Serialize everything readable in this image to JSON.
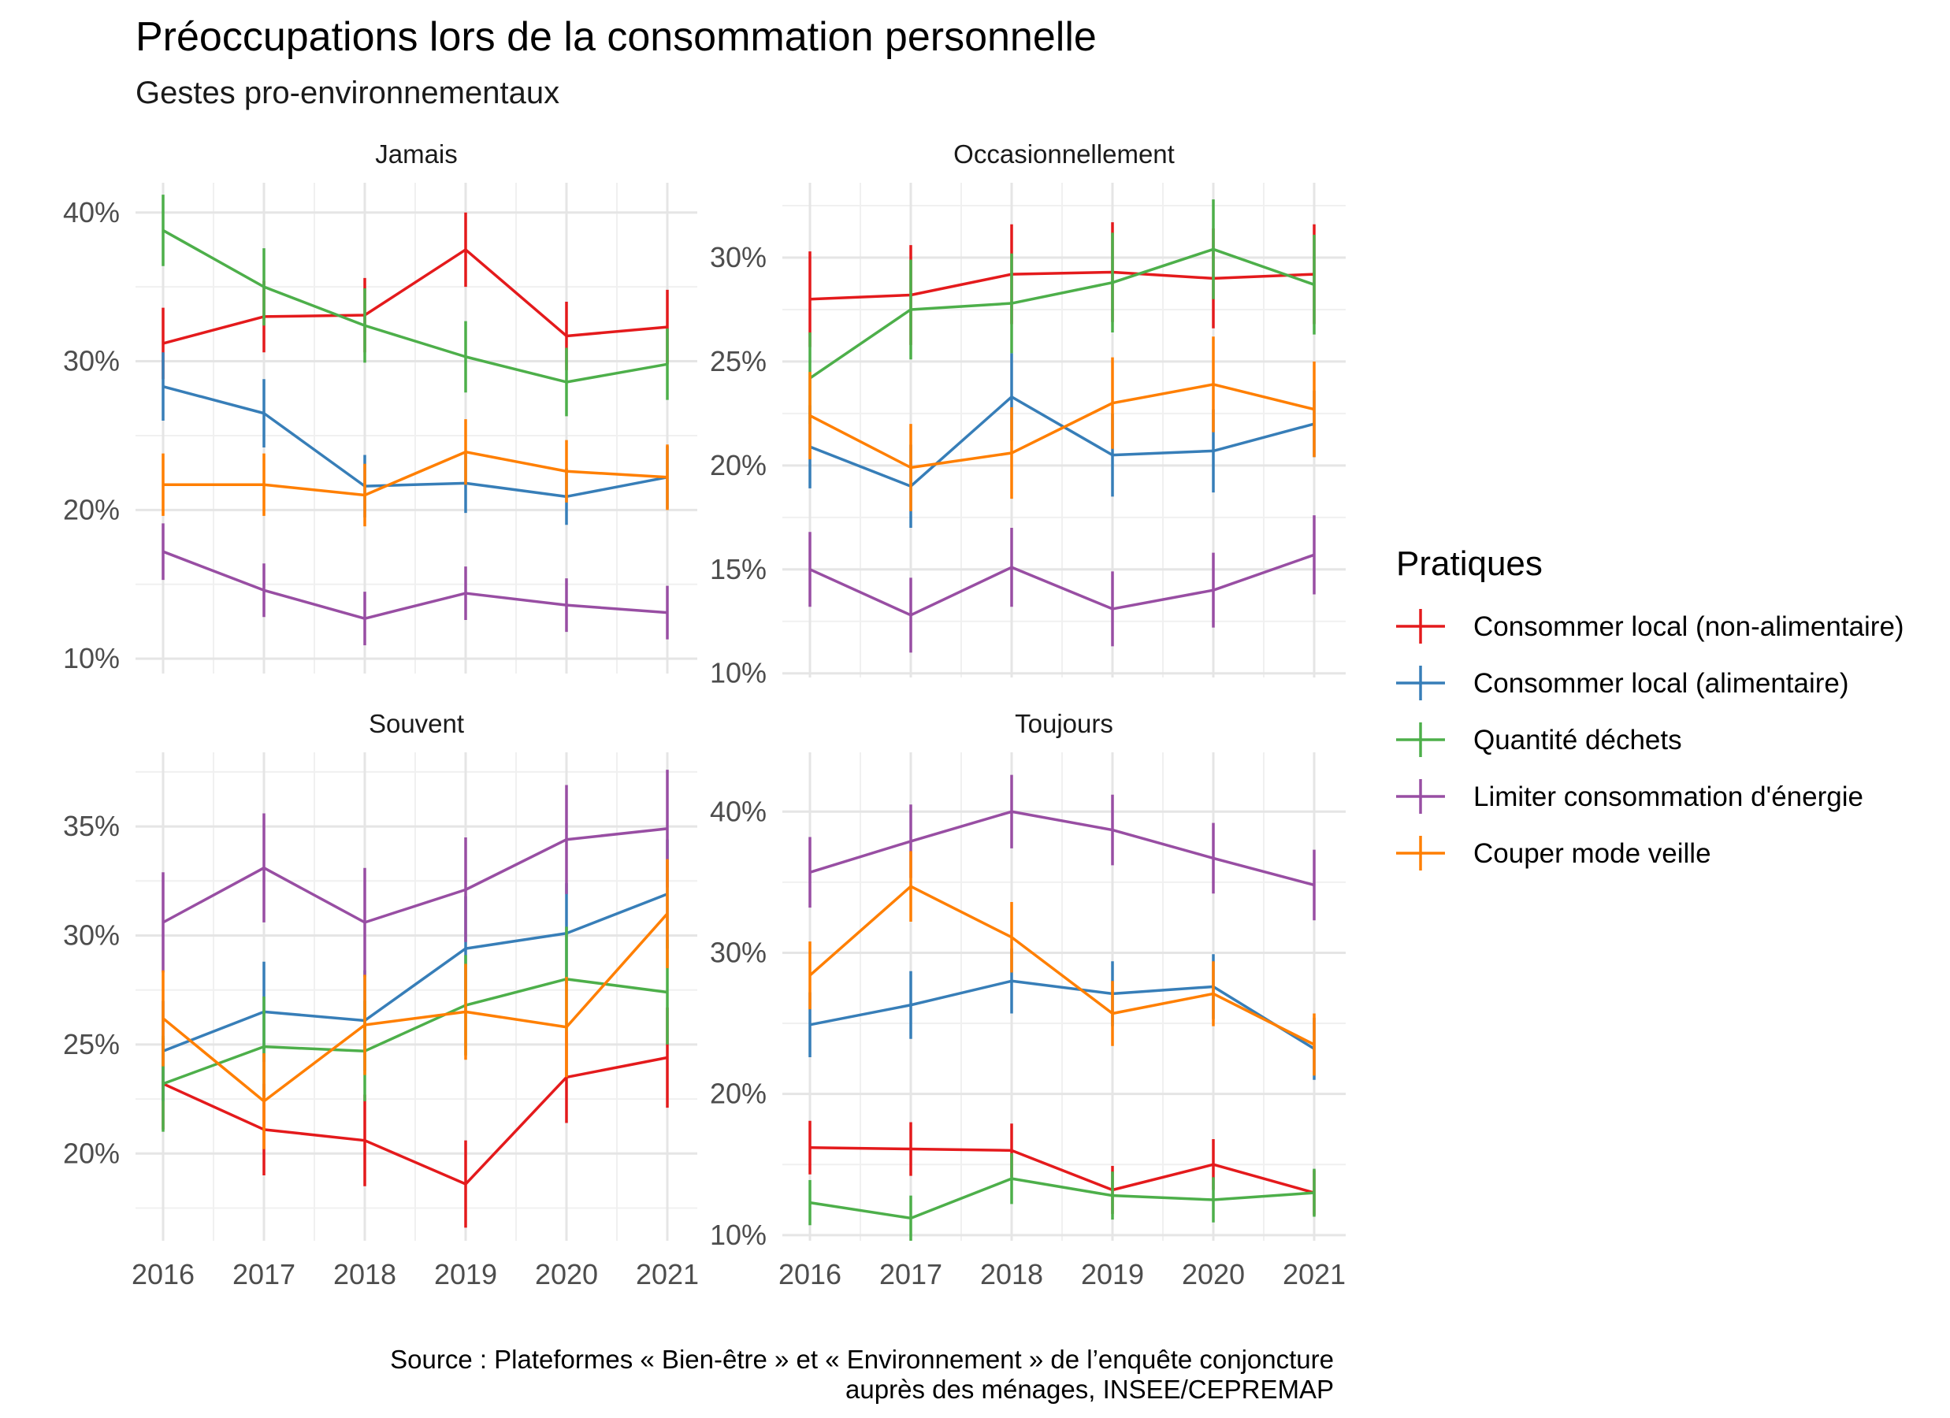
{
  "chart_data": {
    "type": "line",
    "title": "Préoccupations lors de la consommation personnelle",
    "subtitle": "Gestes pro-environnementaux",
    "caption": [
      "Source : Plateformes « Bien-être » et « Environnement » de l’enquête conjoncture",
      "auprès des ménages, INSEE/CEPREMAP"
    ],
    "legend": {
      "title": "Pratiques",
      "position": "right"
    },
    "x": [
      "2016",
      "2017",
      "2018",
      "2019",
      "2020",
      "2021"
    ],
    "error_bars": "vertical",
    "grid": true,
    "series_meta": [
      {
        "name": "Consommer local (non-alimentaire)",
        "color": "#E41A1C"
      },
      {
        "name": "Consommer local (alimentaire)",
        "color": "#377EB8"
      },
      {
        "name": "Quantité déchets",
        "color": "#4DAF4A"
      },
      {
        "name": "Limiter consommation d'énergie",
        "color": "#984EA3"
      },
      {
        "name": "Couper mode veille",
        "color": "#FF7F00"
      }
    ],
    "panels": [
      {
        "title": "Jamais",
        "ylim": [
          9,
          42
        ],
        "yticks": [
          10,
          20,
          30,
          40
        ],
        "ytick_labels": [
          "10%",
          "20%",
          "30%",
          "40%"
        ],
        "series": [
          {
            "name": "Consommer local (non-alimentaire)",
            "values": [
              31.2,
              33.0,
              33.1,
              37.5,
              31.7,
              32.3
            ],
            "err": [
              2.4,
              2.4,
              2.5,
              2.5,
              2.3,
              2.5
            ]
          },
          {
            "name": "Consommer local (alimentaire)",
            "values": [
              28.3,
              26.5,
              21.6,
              21.8,
              20.9,
              22.2
            ],
            "err": [
              2.3,
              2.3,
              2.1,
              2.0,
              1.9,
              2.1
            ]
          },
          {
            "name": "Quantité déchets",
            "values": [
              38.8,
              35.0,
              32.4,
              30.3,
              28.6,
              29.8
            ],
            "err": [
              2.4,
              2.6,
              2.5,
              2.4,
              2.3,
              2.4
            ]
          },
          {
            "name": "Limiter consommation d'énergie",
            "values": [
              17.2,
              14.6,
              12.7,
              14.4,
              13.6,
              13.1
            ],
            "err": [
              1.9,
              1.8,
              1.8,
              1.8,
              1.8,
              1.8
            ]
          },
          {
            "name": "Couper mode veille",
            "values": [
              21.7,
              21.7,
              21.0,
              23.9,
              22.6,
              22.2
            ],
            "err": [
              2.1,
              2.1,
              2.1,
              2.2,
              2.1,
              2.2
            ]
          }
        ]
      },
      {
        "title": "Occasionnellement",
        "ylim": [
          9.8,
          33.6
        ],
        "yticks": [
          10,
          15,
          20,
          25,
          30
        ],
        "ytick_labels": [
          "10%",
          "15%",
          "20%",
          "25%",
          "30%"
        ],
        "series": [
          {
            "name": "Consommer local (non-alimentaire)",
            "values": [
              28.0,
              28.2,
              29.2,
              29.3,
              29.0,
              29.2
            ],
            "err": [
              2.3,
              2.4,
              2.4,
              2.4,
              2.4,
              2.4
            ]
          },
          {
            "name": "Consommer local (alimentaire)",
            "values": [
              20.9,
              19.0,
              23.3,
              20.5,
              20.7,
              22.0
            ],
            "err": [
              2.0,
              2.0,
              2.1,
              2.0,
              2.0,
              1.6
            ]
          },
          {
            "name": "Quantité déchets",
            "values": [
              24.2,
              27.5,
              27.8,
              28.8,
              30.4,
              28.7
            ],
            "err": [
              2.2,
              2.4,
              2.4,
              2.4,
              2.4,
              2.4
            ]
          },
          {
            "name": "Limiter consommation d'énergie",
            "values": [
              15.0,
              12.8,
              15.1,
              13.1,
              14.0,
              15.7
            ],
            "err": [
              1.8,
              1.8,
              1.9,
              1.8,
              1.8,
              1.9
            ]
          },
          {
            "name": "Couper mode veille",
            "values": [
              22.4,
              19.9,
              20.6,
              23.0,
              23.9,
              22.7
            ],
            "err": [
              2.1,
              2.1,
              2.2,
              2.2,
              2.3,
              2.3
            ]
          }
        ]
      },
      {
        "title": "Souvent",
        "ylim": [
          16.0,
          38.4
        ],
        "yticks": [
          20,
          25,
          30,
          35
        ],
        "ytick_labels": [
          "20%",
          "25%",
          "30%",
          "35%"
        ],
        "series": [
          {
            "name": "Consommer local (non-alimentaire)",
            "values": [
              23.2,
              21.1,
              20.6,
              18.6,
              23.5,
              24.4
            ],
            "err": [
              2.1,
              2.1,
              2.1,
              2.0,
              2.1,
              2.3
            ]
          },
          {
            "name": "Consommer local (alimentaire)",
            "values": [
              24.7,
              26.5,
              26.1,
              29.4,
              30.1,
              31.9
            ],
            "err": [
              2.3,
              2.3,
              2.3,
              2.4,
              2.3,
              2.5
            ]
          },
          {
            "name": "Quantité déchets",
            "values": [
              23.2,
              24.9,
              24.7,
              26.8,
              28.0,
              27.4
            ],
            "err": [
              2.2,
              2.3,
              2.3,
              2.3,
              2.4,
              2.4
            ]
          },
          {
            "name": "Limiter consommation d'énergie",
            "values": [
              30.6,
              33.1,
              30.6,
              32.1,
              34.4,
              34.9
            ],
            "err": [
              2.3,
              2.5,
              2.5,
              2.4,
              2.5,
              2.7
            ]
          },
          {
            "name": "Couper mode veille",
            "values": [
              26.2,
              22.4,
              25.9,
              26.5,
              25.8,
              31.0
            ],
            "err": [
              2.2,
              2.2,
              2.3,
              2.2,
              2.3,
              2.5
            ]
          }
        ]
      },
      {
        "title": "Toujours",
        "ylim": [
          9.6,
          44.2
        ],
        "yticks": [
          10,
          20,
          30,
          40
        ],
        "ytick_labels": [
          "10%",
          "20%",
          "30%",
          "40%"
        ],
        "series": [
          {
            "name": "Consommer local (non-alimentaire)",
            "values": [
              16.2,
              16.1,
              16.0,
              13.2,
              15.0,
              13.0
            ],
            "err": [
              1.9,
              1.9,
              1.9,
              1.7,
              1.8,
              1.6
            ]
          },
          {
            "name": "Consommer local (alimentaire)",
            "values": [
              24.9,
              26.3,
              28.0,
              27.1,
              27.6,
              23.2
            ],
            "err": [
              2.3,
              2.4,
              2.3,
              2.3,
              2.3,
              2.2
            ]
          },
          {
            "name": "Quantité déchets",
            "values": [
              12.3,
              11.2,
              14.0,
              12.8,
              12.5,
              13.0
            ],
            "err": [
              1.6,
              1.6,
              1.8,
              1.7,
              1.6,
              1.7
            ]
          },
          {
            "name": "Limiter consommation d'énergie",
            "values": [
              35.7,
              37.9,
              40.0,
              38.7,
              36.7,
              34.8
            ],
            "err": [
              2.5,
              2.6,
              2.6,
              2.5,
              2.5,
              2.5
            ]
          },
          {
            "name": "Couper mode veille",
            "values": [
              28.4,
              34.7,
              31.1,
              25.7,
              27.1,
              23.5
            ],
            "err": [
              2.4,
              2.5,
              2.5,
              2.3,
              2.3,
              2.2
            ]
          }
        ]
      }
    ]
  }
}
